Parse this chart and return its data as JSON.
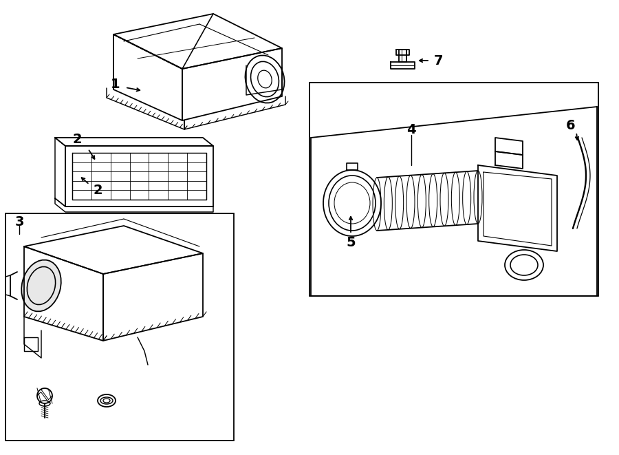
{
  "bg": "#ffffff",
  "lc": "#000000",
  "lw": 1.3,
  "figsize": [
    9.0,
    6.61
  ],
  "dpi": 100
}
